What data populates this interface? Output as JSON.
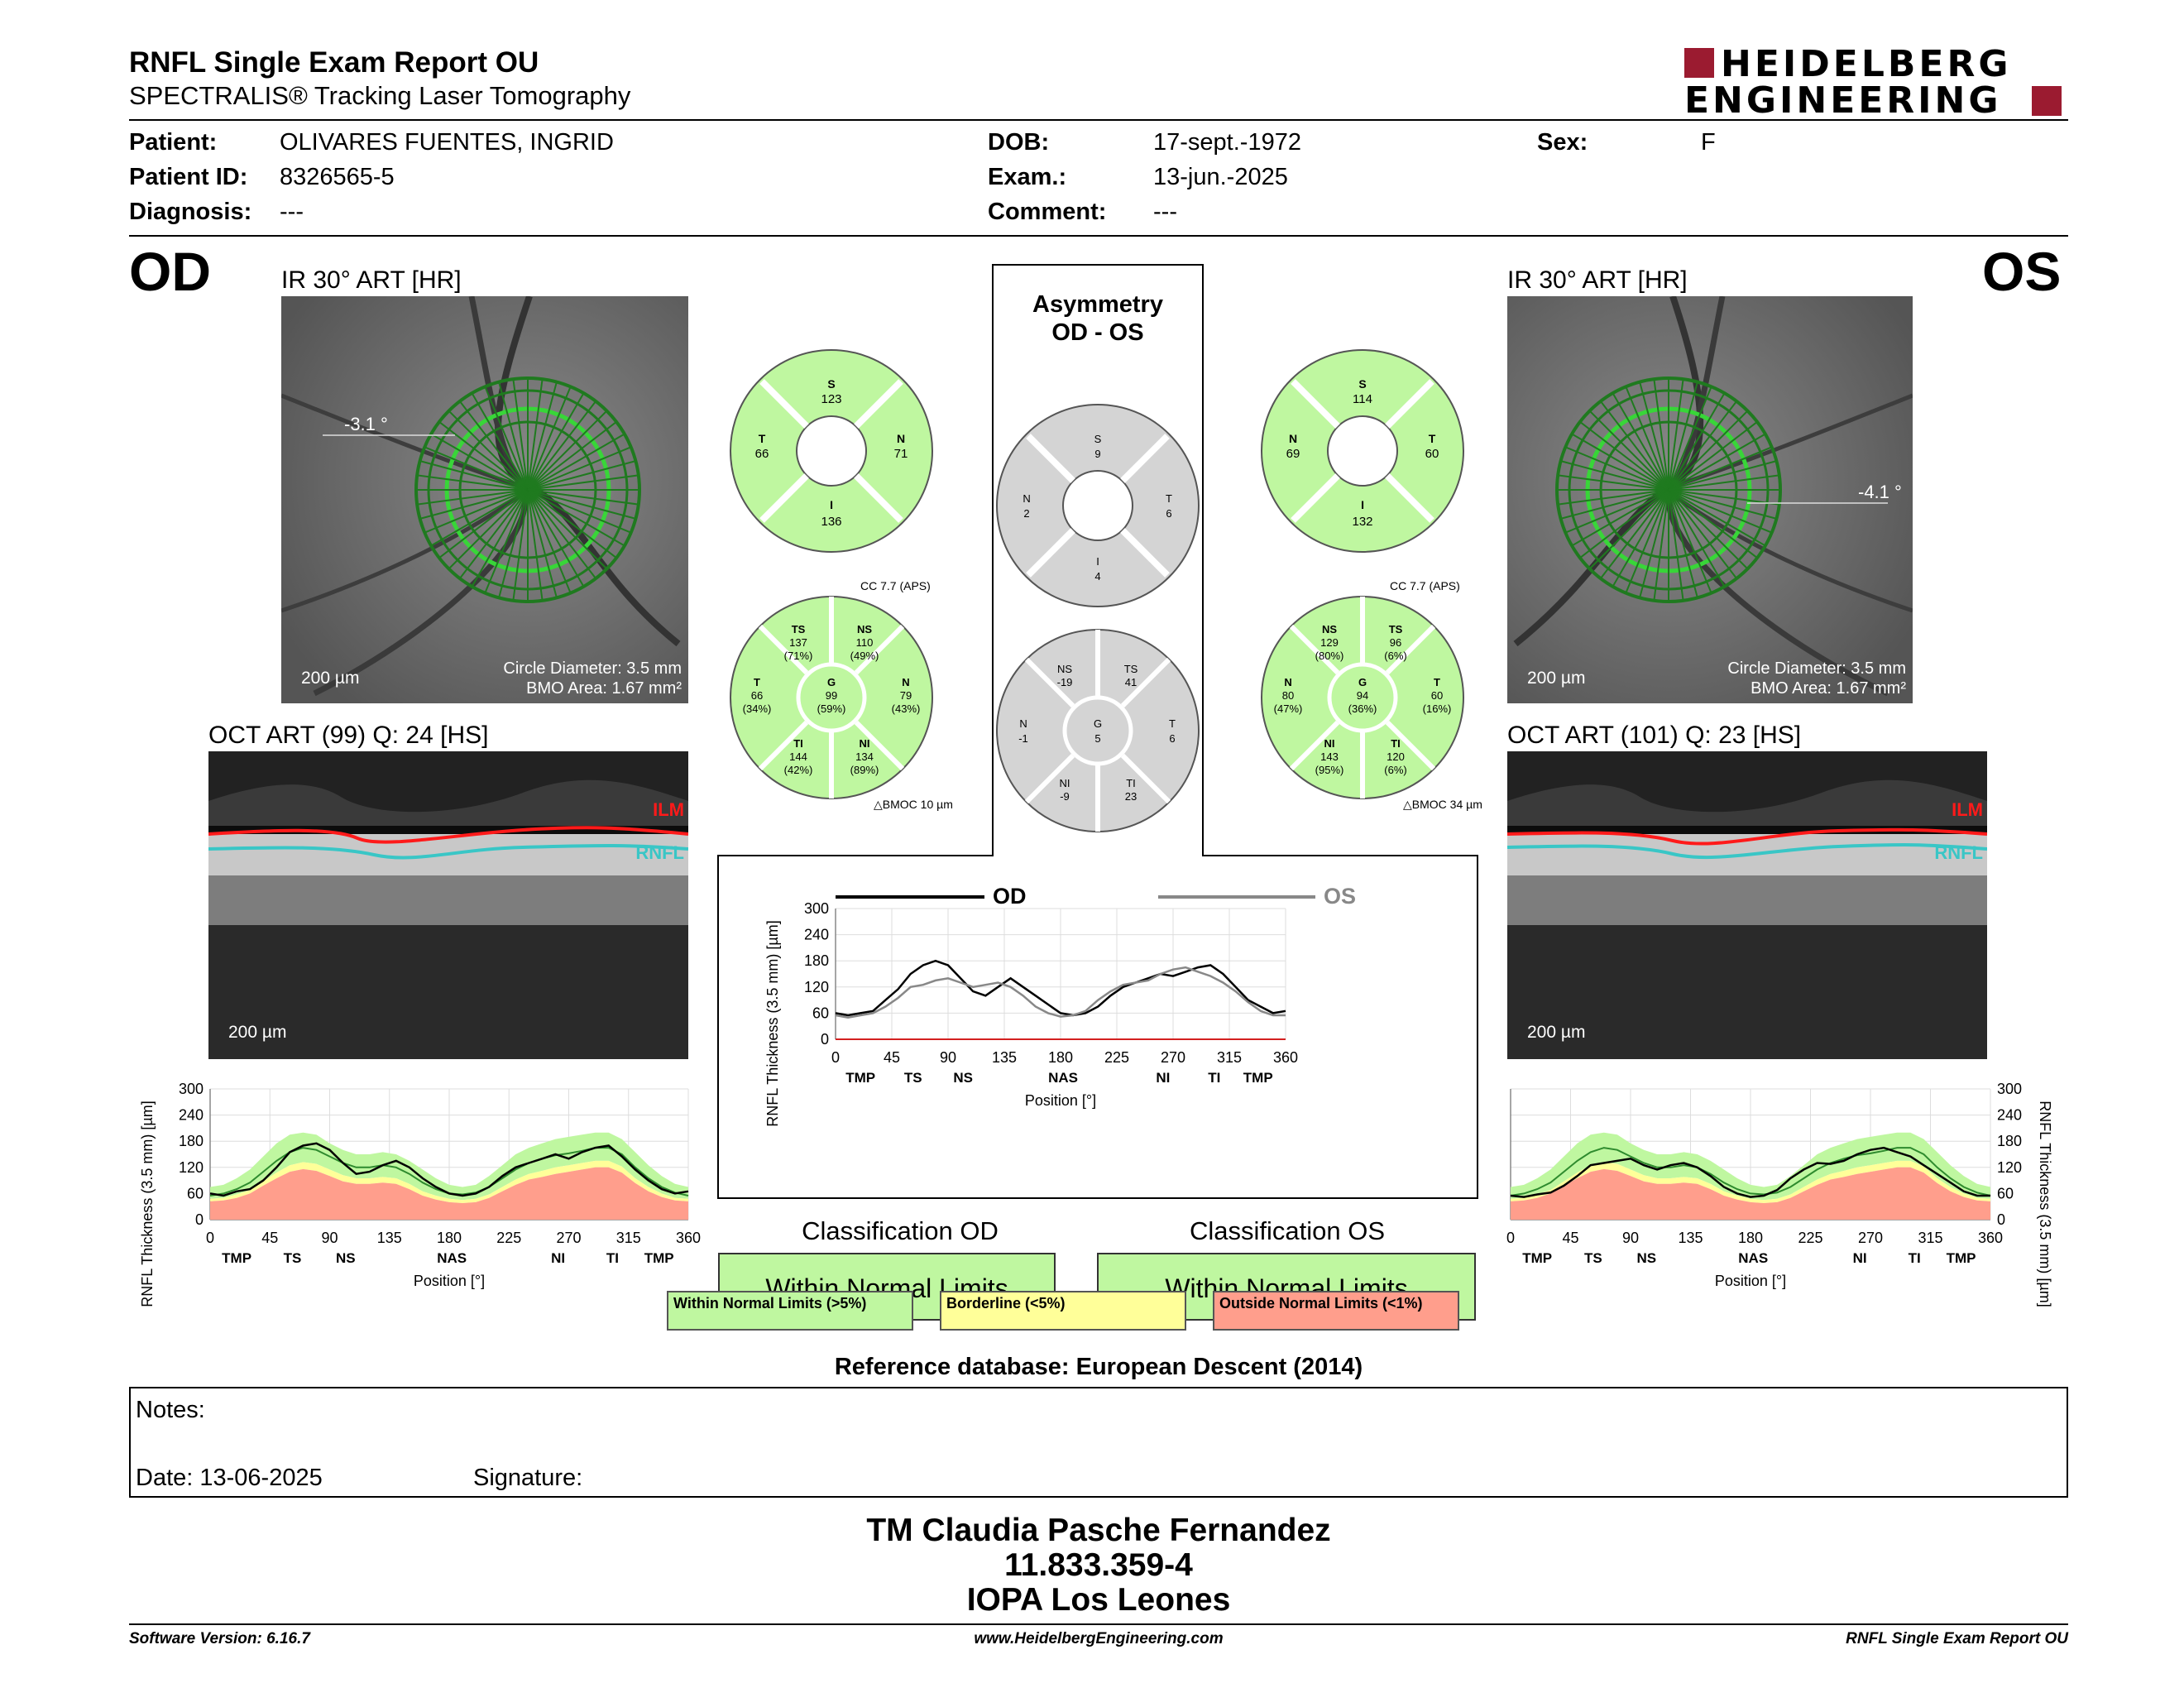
{
  "header": {
    "title": "RNFL Single Exam Report OU",
    "subtitle": "SPECTRALIS® Tracking Laser Tomography",
    "logo_line1": "HEIDELBERG",
    "logo_line2": "ENGINEERING"
  },
  "patient": {
    "patient_label": "Patient:",
    "patient_value": "OLIVARES FUENTES, INGRID",
    "id_label": "Patient ID:",
    "id_value": "8326565-5",
    "diag_label": "Diagnosis:",
    "diag_value": "---",
    "dob_label": "DOB:",
    "dob_value": "17-sept.-1972",
    "exam_label": "Exam.:",
    "exam_value": "13-jun.-2025",
    "comment_label": "Comment:",
    "comment_value": "---",
    "sex_label": "Sex:",
    "sex_value": "F"
  },
  "od": {
    "eye": "OD",
    "ir_title": "IR 30° ART [HR]",
    "angle": "-3.1 °",
    "scale": "200 µm",
    "circle_diameter": "Circle Diameter: 3.5 mm",
    "bmo_area": "BMO Area: 1.67 mm²",
    "oct_title": "OCT ART (99) Q: 24 [HS]",
    "oct_scale": "200 µm",
    "ilm": "ILM",
    "rnfl": "RNFL",
    "classification_title": "Classification OD",
    "classification": "Within Normal Limits",
    "sectors4": {
      "S": "123",
      "T": "66",
      "N": "71",
      "I": "136"
    },
    "cc": "CC 7.7 (APS)",
    "bmoc": "BMOC 10 µm",
    "sectors6": {
      "TS": "137",
      "TS_p": "(71%)",
      "NS": "110",
      "NS_p": "(49%)",
      "T": "66",
      "T_p": "(34%)",
      "G": "99",
      "G_p": "(59%)",
      "N": "79",
      "N_p": "(43%)",
      "TI": "144",
      "TI_p": "(42%)",
      "NI": "134",
      "NI_p": "(89%)"
    }
  },
  "os": {
    "eye": "OS",
    "ir_title": "IR 30° ART [HR]",
    "angle": "-4.1 °",
    "scale": "200 µm",
    "circle_diameter": "Circle Diameter: 3.5 mm",
    "bmo_area": "BMO Area: 1.67 mm²",
    "oct_title": "OCT ART (101) Q: 23 [HS]",
    "oct_scale": "200 µm",
    "ilm": "ILM",
    "rnfl": "RNFL",
    "classification_title": "Classification OS",
    "classification": "Within Normal Limits",
    "sectors4": {
      "S": "114",
      "N": "69",
      "T": "60",
      "I": "132"
    },
    "cc": "CC 7.7 (APS)",
    "bmoc": "BMOC 34 µm",
    "sectors6": {
      "NS": "129",
      "NS_p": "(80%)",
      "TS": "96",
      "TS_p": "(6%)",
      "N": "80",
      "N_p": "(47%)",
      "G": "94",
      "G_p": "(36%)",
      "T": "60",
      "T_p": "(16%)",
      "NI": "143",
      "NI_p": "(95%)",
      "TI": "120",
      "TI_p": "(6%)"
    }
  },
  "asymmetry": {
    "title1": "Asymmetry",
    "title2": "OD - OS",
    "sectors4": {
      "S": "9",
      "N": "2",
      "T": "6",
      "I": "4"
    },
    "sectors6": {
      "NS": "-19",
      "TS": "41",
      "N": "-1",
      "G": "5",
      "T": "6",
      "NI": "-9",
      "TI": "23"
    }
  },
  "legend": {
    "wnl": "Within Normal Limits (>5%)",
    "borderline": "Borderline (<5%)",
    "onl": "Outside Normal Limits (<1%)"
  },
  "reference": "Reference database: European Descent (2014)",
  "notes": {
    "label": "Notes:",
    "date": "Date: 13-06-2025",
    "signature": "Signature:"
  },
  "signer": {
    "name": "TM Claudia Pasche Fernandez",
    "id": "11.833.359-4",
    "org": "IOPA Los Leones"
  },
  "footer": {
    "software": "Software Version: 6.16.7",
    "website": "www.HeidelbergEngineering.com",
    "report": "RNFL Single Exam Report OU"
  },
  "colors": {
    "wnl": "#bff7a0",
    "borderline": "#ffff99",
    "onl": "#ff9e8c",
    "od_line": "#000000",
    "os_line": "#888888",
    "logo_red": "#9b1b30"
  },
  "chart_data": [
    {
      "type": "line",
      "ylabel": "RNFL Thickness (3.5 mm) [µm]",
      "xlabel": "Position [°]",
      "x_ticks": [
        0,
        45,
        90,
        135,
        180,
        225,
        270,
        315,
        360
      ],
      "y_ticks": [
        0,
        60,
        120,
        180,
        240,
        300
      ],
      "region_labels": [
        "TMP",
        "TS",
        "NS",
        "NAS",
        "NI",
        "TI",
        "TMP"
      ],
      "region_positions": [
        20,
        62,
        102,
        182,
        262,
        303,
        338
      ],
      "ylim": [
        0,
        300
      ],
      "series": [
        {
          "name": "OD",
          "x": [
            0,
            10,
            20,
            30,
            40,
            50,
            60,
            70,
            80,
            90,
            100,
            110,
            120,
            130,
            140,
            150,
            160,
            170,
            180,
            190,
            200,
            210,
            220,
            230,
            240,
            250,
            260,
            270,
            280,
            290,
            300,
            310,
            320,
            330,
            340,
            350,
            360
          ],
          "y": [
            60,
            55,
            60,
            65,
            90,
            115,
            150,
            170,
            180,
            170,
            140,
            110,
            100,
            120,
            140,
            120,
            100,
            80,
            60,
            55,
            60,
            75,
            100,
            120,
            130,
            140,
            150,
            145,
            155,
            165,
            170,
            150,
            120,
            90,
            75,
            60,
            65
          ]
        },
        {
          "name": "OS",
          "x": [
            0,
            10,
            20,
            30,
            40,
            50,
            60,
            70,
            80,
            90,
            100,
            110,
            120,
            130,
            140,
            150,
            160,
            170,
            180,
            190,
            200,
            210,
            220,
            230,
            240,
            250,
            260,
            270,
            280,
            290,
            300,
            310,
            320,
            330,
            340,
            350,
            360
          ],
          "y": [
            55,
            50,
            55,
            60,
            75,
            95,
            120,
            125,
            135,
            140,
            130,
            120,
            125,
            130,
            120,
            100,
            75,
            60,
            52,
            55,
            65,
            90,
            110,
            125,
            130,
            135,
            150,
            160,
            165,
            155,
            145,
            130,
            110,
            85,
            65,
            55,
            55
          ]
        }
      ]
    },
    {
      "type": "area",
      "eye": "OD",
      "ylabel": "RNFL Thickness (3.5 mm) [µm]",
      "xlabel": "Position [°]",
      "x_ticks": [
        0,
        45,
        90,
        135,
        180,
        225,
        270,
        315,
        360
      ],
      "y_ticks": [
        0,
        60,
        120,
        180,
        240,
        300
      ],
      "region_labels": [
        "TMP",
        "TS",
        "NS",
        "NAS",
        "NI",
        "TI",
        "TMP"
      ],
      "region_positions": [
        20,
        62,
        102,
        182,
        262,
        303,
        338
      ],
      "ylim": [
        0,
        300
      ],
      "x": [
        0,
        10,
        20,
        30,
        40,
        50,
        60,
        70,
        80,
        90,
        100,
        110,
        120,
        130,
        140,
        150,
        160,
        170,
        180,
        190,
        200,
        210,
        220,
        230,
        240,
        250,
        260,
        270,
        280,
        290,
        300,
        310,
        320,
        330,
        340,
        350,
        360
      ],
      "measured": [
        60,
        55,
        65,
        70,
        90,
        120,
        155,
        170,
        175,
        160,
        130,
        105,
        110,
        125,
        135,
        120,
        95,
        75,
        60,
        55,
        60,
        75,
        100,
        120,
        130,
        140,
        150,
        140,
        155,
        165,
        170,
        145,
        115,
        90,
        70,
        60,
        65
      ],
      "normal": [
        55,
        60,
        70,
        85,
        110,
        135,
        155,
        165,
        160,
        145,
        130,
        120,
        120,
        125,
        120,
        105,
        85,
        70,
        60,
        58,
        62,
        75,
        95,
        115,
        130,
        140,
        148,
        152,
        158,
        165,
        165,
        150,
        120,
        95,
        75,
        62,
        55
      ],
      "wnl_upper": [
        75,
        80,
        95,
        115,
        145,
        175,
        195,
        200,
        195,
        175,
        160,
        150,
        150,
        155,
        150,
        135,
        115,
        95,
        80,
        75,
        80,
        100,
        125,
        150,
        165,
        175,
        185,
        190,
        195,
        200,
        200,
        185,
        155,
        125,
        100,
        82,
        75
      ],
      "borderline_upper": [
        48,
        50,
        58,
        68,
        88,
        108,
        125,
        132,
        128,
        115,
        102,
        95,
        95,
        98,
        95,
        82,
        65,
        55,
        48,
        45,
        48,
        58,
        75,
        92,
        105,
        112,
        120,
        125,
        130,
        135,
        135,
        122,
        95,
        75,
        60,
        50,
        48
      ],
      "onl_upper": [
        42,
        44,
        50,
        60,
        78,
        95,
        110,
        116,
        112,
        100,
        88,
        82,
        82,
        85,
        82,
        70,
        55,
        46,
        40,
        38,
        40,
        50,
        65,
        80,
        92,
        98,
        105,
        110,
        115,
        120,
        120,
        108,
        84,
        65,
        52,
        44,
        42
      ]
    },
    {
      "type": "area",
      "eye": "OS",
      "ylabel": "RNFL Thickness (3.5 mm) [µm]",
      "xlabel": "Position [°]",
      "x_ticks": [
        0,
        45,
        90,
        135,
        180,
        225,
        270,
        315,
        360
      ],
      "y_ticks": [
        0,
        60,
        120,
        180,
        240,
        300
      ],
      "region_labels": [
        "TMP",
        "TS",
        "NS",
        "NAS",
        "NI",
        "TI",
        "TMP"
      ],
      "region_positions": [
        20,
        62,
        102,
        182,
        262,
        303,
        338
      ],
      "ylim": [
        0,
        300
      ],
      "x": [
        0,
        10,
        20,
        30,
        40,
        50,
        60,
        70,
        80,
        90,
        100,
        110,
        120,
        130,
        140,
        150,
        160,
        170,
        180,
        190,
        200,
        210,
        220,
        230,
        240,
        250,
        260,
        270,
        280,
        290,
        300,
        310,
        320,
        330,
        340,
        350,
        360
      ],
      "measured": [
        55,
        52,
        58,
        62,
        78,
        100,
        125,
        130,
        135,
        140,
        125,
        115,
        125,
        130,
        120,
        100,
        75,
        60,
        52,
        55,
        68,
        95,
        115,
        130,
        128,
        135,
        150,
        160,
        165,
        155,
        145,
        125,
        105,
        85,
        65,
        55,
        55
      ],
      "normal": [
        55,
        60,
        70,
        85,
        110,
        135,
        155,
        165,
        160,
        145,
        130,
        120,
        120,
        125,
        120,
        105,
        85,
        70,
        60,
        58,
        62,
        75,
        95,
        115,
        130,
        140,
        148,
        152,
        158,
        165,
        165,
        150,
        120,
        95,
        75,
        62,
        55
      ],
      "wnl_upper": [
        75,
        80,
        95,
        115,
        145,
        175,
        195,
        200,
        195,
        175,
        160,
        150,
        150,
        155,
        150,
        135,
        115,
        95,
        80,
        75,
        80,
        100,
        125,
        150,
        165,
        175,
        185,
        190,
        195,
        200,
        200,
        185,
        155,
        125,
        100,
        82,
        75
      ],
      "borderline_upper": [
        48,
        50,
        58,
        68,
        88,
        108,
        125,
        132,
        128,
        115,
        102,
        95,
        95,
        98,
        95,
        82,
        65,
        55,
        48,
        45,
        48,
        58,
        75,
        92,
        105,
        112,
        120,
        125,
        130,
        135,
        135,
        122,
        95,
        75,
        60,
        50,
        48
      ],
      "onl_upper": [
        42,
        44,
        50,
        60,
        78,
        95,
        110,
        116,
        112,
        100,
        88,
        82,
        82,
        85,
        82,
        70,
        55,
        46,
        40,
        38,
        40,
        50,
        65,
        80,
        92,
        98,
        105,
        110,
        115,
        120,
        120,
        108,
        84,
        65,
        52,
        44,
        42
      ]
    }
  ]
}
